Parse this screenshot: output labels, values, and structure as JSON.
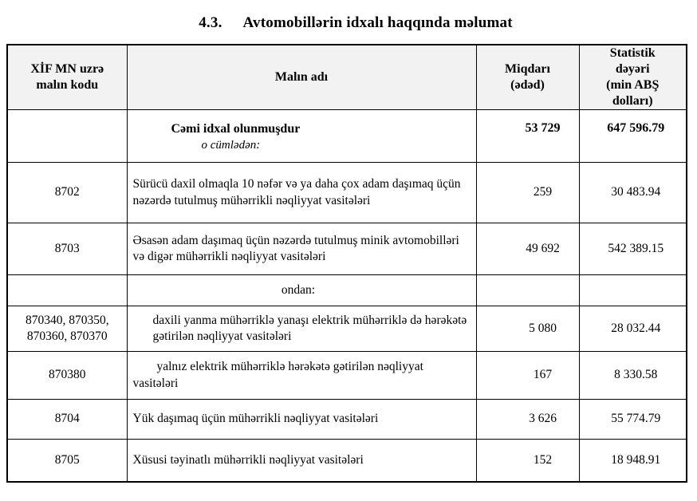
{
  "page": {
    "title_number": "4.3.",
    "title_text": "Avtomobillərin idxalı haqqında məlumat"
  },
  "table": {
    "header": {
      "col_code": {
        "lines": [
          "XİF MN uzrə",
          "malın kodu"
        ]
      },
      "col_name": {
        "lines": [
          "Malın adı"
        ]
      },
      "col_qty": {
        "lines": [
          "Miqdarı",
          "(ədəd)"
        ]
      },
      "col_value": {
        "lines": [
          "Statistik",
          "dəyəri",
          "(min ABŞ",
          "dolları)"
        ]
      }
    },
    "rows": [
      {
        "code": "",
        "name": "Cəmi idxal olunmuşdur",
        "note": "o cümlədən:",
        "qty": "53 729",
        "value": "647 596.79"
      },
      {
        "code": "8702",
        "name": "Sürücü daxil olmaqla 10 nəfər və ya daha çox adam daşımaq üçün nəzərdə tutulmuş mühərrikli nəqliyyat vasitələri",
        "qty": "259",
        "value": "30 483.94"
      },
      {
        "code": "8703",
        "name": "Əsasən adam daşımaq üçün nəzərdə tutulmuş minik avtomobilləri və digər mühərrikli nəqliyyat vasitələri",
        "qty": "49 692",
        "value": "542 389.15"
      },
      {
        "code": "",
        "name": "ondan:",
        "qty": "",
        "value": ""
      },
      {
        "code": "870340, 870350, 870360, 870370",
        "name": "daxili yanma mühərriklə yanaşı elektrik mühərriklə də hərəkətə gətirilən nəqliyyat vasitələri",
        "qty": "5 080",
        "value": "28 032.44"
      },
      {
        "code": "870380",
        "name": "yalnız elektrik mühərriklə hərəkətə gətirilən nəqliyyat vasitələri",
        "qty": "167",
        "value": "8 330.58"
      },
      {
        "code": "8704",
        "name": "Yük daşımaq üçün mühərrikli nəqliyyat vasitələri",
        "qty": "3 626",
        "value": "55 774.79"
      },
      {
        "code": "8705",
        "name": "Xüsusi təyinatlı mühərrikli nəqliyyat vasitələri",
        "qty": "152",
        "value": "18 948.91"
      }
    ]
  }
}
